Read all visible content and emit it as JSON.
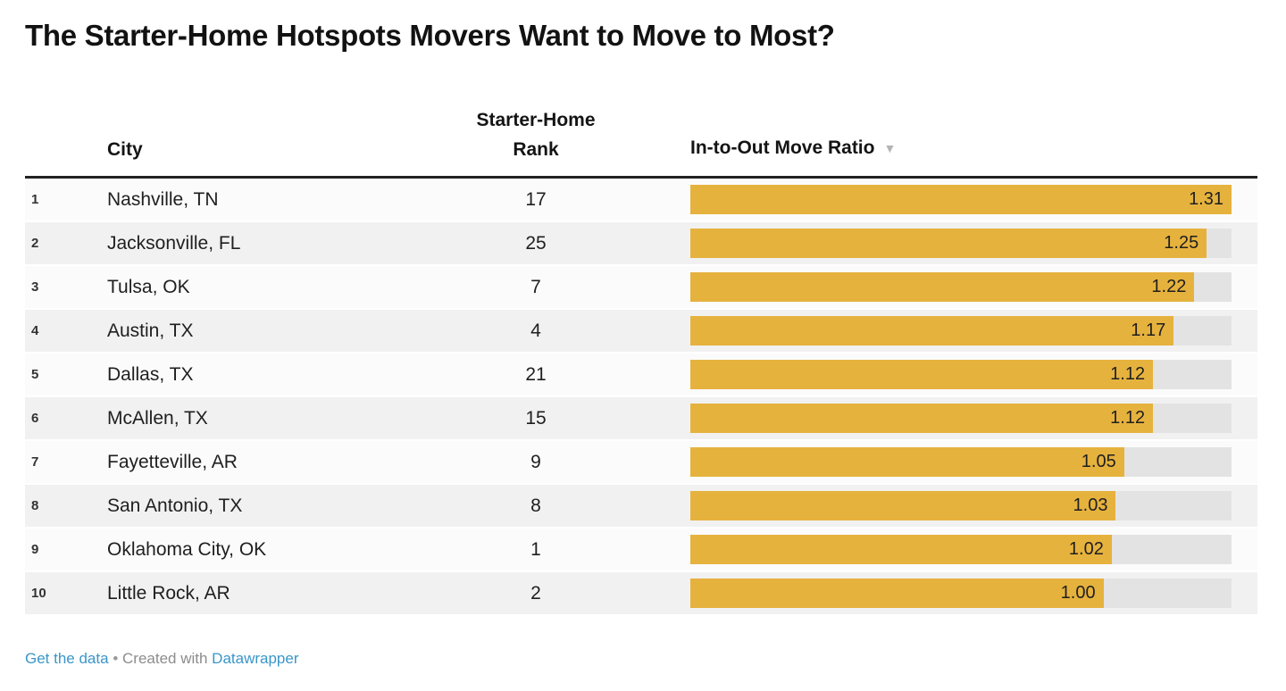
{
  "title": "The Starter-Home Hotspots Movers Want to Move to Most?",
  "table": {
    "headers": {
      "city": "City",
      "starter_rank_line1": "Starter-Home",
      "starter_rank_line2": "Rank",
      "ratio": "In-to-Out Move Ratio",
      "sort_icon": "▼"
    },
    "rows": [
      {
        "index": "1",
        "city": "Nashville, TN",
        "starter_rank": "17",
        "ratio": "1.31"
      },
      {
        "index": "2",
        "city": "Jacksonville, FL",
        "starter_rank": "25",
        "ratio": "1.25"
      },
      {
        "index": "3",
        "city": "Tulsa, OK",
        "starter_rank": "7",
        "ratio": "1.22"
      },
      {
        "index": "4",
        "city": "Austin, TX",
        "starter_rank": "4",
        "ratio": "1.17"
      },
      {
        "index": "5",
        "city": "Dallas, TX",
        "starter_rank": "21",
        "ratio": "1.12"
      },
      {
        "index": "6",
        "city": "McAllen, TX",
        "starter_rank": "15",
        "ratio": "1.12"
      },
      {
        "index": "7",
        "city": "Fayetteville, AR",
        "starter_rank": "9",
        "ratio": "1.05"
      },
      {
        "index": "8",
        "city": "San Antonio, TX",
        "starter_rank": "8",
        "ratio": "1.03"
      },
      {
        "index": "9",
        "city": "Oklahoma City, OK",
        "starter_rank": "1",
        "ratio": "1.02"
      },
      {
        "index": "10",
        "city": "Little Rock, AR",
        "starter_rank": "2",
        "ratio": "1.00"
      }
    ]
  },
  "footer": {
    "get_data_label": "Get the data",
    "separator": "•",
    "created_with": "Created with",
    "brand": "Datawrapper"
  },
  "colors": {
    "bar": "#e6b23e",
    "bar_track": "#e3e3e3",
    "row_even": "#f1f1f1",
    "row_odd": "#fbfbfb",
    "header_rule": "#222222",
    "link_blue": "#3a96c8",
    "footer_gray": "#8c8c8c",
    "sort_caret": "#b5b5b5"
  },
  "chart_data": {
    "type": "table",
    "title": "The Starter-Home Hotspots Movers Want to Move to Most?",
    "columns": [
      "Rank",
      "City",
      "Starter-Home Rank",
      "In-to-Out Move Ratio"
    ],
    "categories": [
      "Nashville, TN",
      "Jacksonville, FL",
      "Tulsa, OK",
      "Austin, TX",
      "Dallas, TX",
      "McAllen, TX",
      "Fayetteville, AR",
      "San Antonio, TX",
      "Oklahoma City, OK",
      "Little Rock, AR"
    ],
    "series": [
      {
        "name": "Starter-Home Rank",
        "values": [
          17,
          25,
          7,
          4,
          21,
          15,
          9,
          8,
          1,
          2
        ]
      },
      {
        "name": "In-to-Out Move Ratio",
        "values": [
          1.31,
          1.25,
          1.22,
          1.17,
          1.12,
          1.12,
          1.05,
          1.03,
          1.02,
          1.0
        ]
      }
    ],
    "bar_column": "In-to-Out Move Ratio",
    "bar_axis_range": [
      0,
      1.31
    ],
    "sort": {
      "column": "In-to-Out Move Ratio",
      "direction": "desc"
    },
    "bar_color": "#e6b23e"
  }
}
